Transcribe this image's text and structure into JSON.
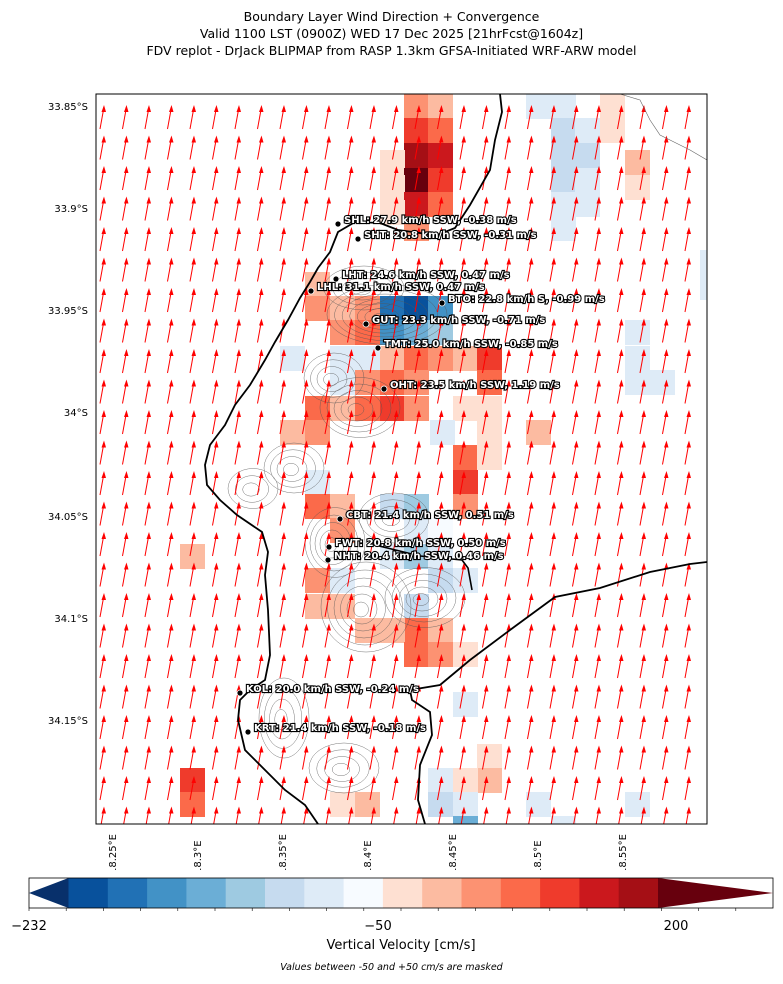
{
  "title": {
    "line1": "Boundary Layer Wind Direction + Convergence",
    "line2": "Valid 1100 LST (0900Z) WED 17 Dec 2025 [21hrFcst@1604z]",
    "line3": "FDV replot - DrJack BLIPMAP from RASP 1.3km GFSA-Initiated WRF-ARW model"
  },
  "map": {
    "lat_labels": [
      "33.85°S",
      "33.9°S",
      "33.95°S",
      "34°S",
      "34.05°S",
      "34.1°S",
      "34.15°S"
    ],
    "lon_labels": [
      "18.25°E",
      "18.3°E",
      "18.35°E",
      "18.4°E",
      "18.45°E",
      "18.5°E",
      "18.55°E"
    ],
    "wind_arrow_color": "#ff0000",
    "coastline_color": "#000000",
    "stations": [
      {
        "code": "SHL",
        "label": "SHL: 27.9 km/h SSW, -0.38 m/s"
      },
      {
        "code": "SHT",
        "label": "SHT: 20.8 km/h SSW, -0.31 m/s"
      },
      {
        "code": "LHT",
        "label": "LHT: 24.6 km/h SSW, 0.47 m/s"
      },
      {
        "code": "LHL",
        "label": "LHL: 31.1 km/h SSW, 0.47 m/s"
      },
      {
        "code": "BTO",
        "label": "BTO: 22.8 km/h S, -0.99 m/s"
      },
      {
        "code": "GUT",
        "label": "GUT: 23.3 km/h SSW, -0.71 m/s"
      },
      {
        "code": "TMT",
        "label": "TMT: 25.0 km/h SSW, -0.85 m/s"
      },
      {
        "code": "OHT",
        "label": "OHT: 23.5 km/h SSW, 1.19 m/s"
      },
      {
        "code": "CBT",
        "label": "CBT: 21.4 km/h SSW, 0.51 m/s"
      },
      {
        "code": "FWT",
        "label": "FWT: 20.8 km/h SSW, 0.50 m/s"
      },
      {
        "code": "NHT",
        "label": "NHT: 20.4 km/h SSW, 0.46 m/s"
      },
      {
        "code": "KOL",
        "label": "KOL: 20.0 km/h SSW, -0.24 m/s"
      },
      {
        "code": "KRT",
        "label": "KRT: 21.4 km/h SSW, -0.18 m/s"
      }
    ]
  },
  "colorbar": {
    "label": "Vertical Velocity [cm/s]",
    "ticks": [
      "−232",
      "−50",
      "200"
    ],
    "colors": [
      "#08306b",
      "#08519c",
      "#2171b5",
      "#4292c6",
      "#6baed6",
      "#9ecae1",
      "#c6dbef",
      "#deebf7",
      "#f7fbff",
      "#fee0d2",
      "#fcbba1",
      "#fc9272",
      "#fb6a4a",
      "#ef3b2c",
      "#cb181d",
      "#a50f15",
      "#67000d"
    ]
  },
  "note": "Values between -50 and +50 cm/s are masked"
}
